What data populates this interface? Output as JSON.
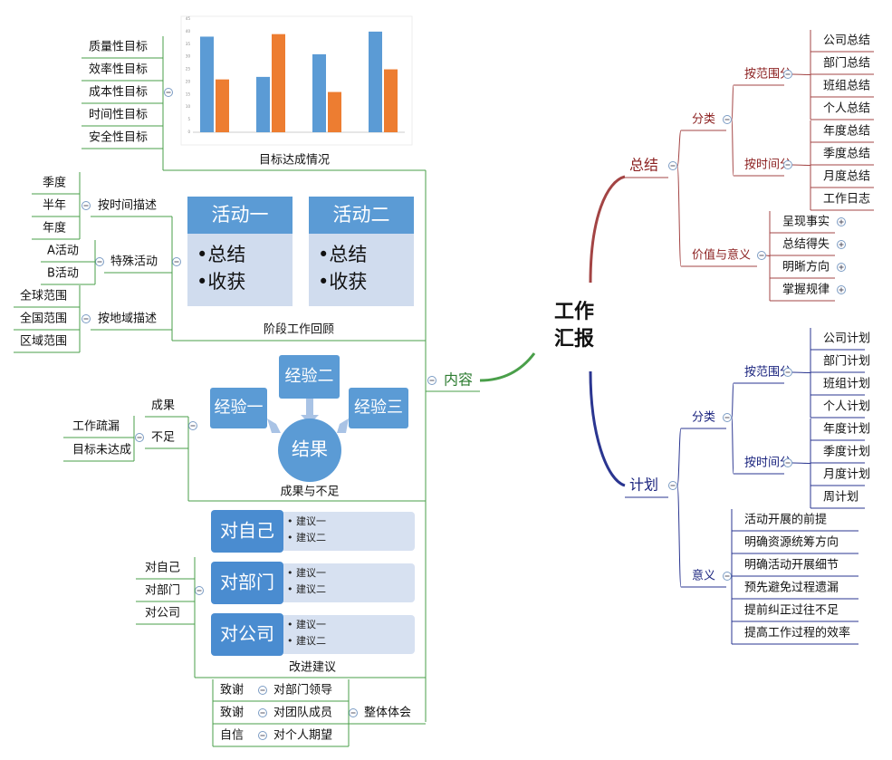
{
  "center": "工作汇报",
  "summary": {
    "label": "总结",
    "classify": {
      "label": "分类",
      "by_scope": {
        "label": "按范围分",
        "items": [
          "公司总结",
          "部门总结",
          "班组总结",
          "个人总结"
        ]
      },
      "by_time": {
        "label": "按时间分",
        "items": [
          "年度总结",
          "季度总结",
          "月度总结",
          "工作日志"
        ]
      }
    },
    "value": {
      "label": "价值与意义",
      "items": [
        "呈现事实",
        "总结得失",
        "明晰方向",
        "掌握规律"
      ]
    }
  },
  "plan": {
    "label": "计划",
    "classify": {
      "label": "分类",
      "by_scope": {
        "label": "按范围分",
        "items": [
          "公司计划",
          "部门计划",
          "班组计划",
          "个人计划"
        ]
      },
      "by_time": {
        "label": "按时间分",
        "items": [
          "年度计划",
          "季度计划",
          "月度计划",
          "周计划"
        ]
      }
    },
    "meaning": {
      "label": "意义",
      "items": [
        "活动开展的前提",
        "明确资源统筹方向",
        "明确活动开展细节",
        "预先避免过程遗漏",
        "提前纠正过往不足",
        "提高工作过程的效率"
      ]
    }
  },
  "content": {
    "label": "内容",
    "goals": {
      "label": "目标达成情况",
      "items": [
        "质量性目标",
        "效率性目标",
        "成本性目标",
        "时间性目标",
        "安全性目标"
      ]
    },
    "review": {
      "label": "阶段工作回顾",
      "by_time": {
        "label": "按时间描述",
        "items": [
          "季度",
          "半年",
          "年度"
        ]
      },
      "special": {
        "label": "特殊活动",
        "items": [
          "A活动",
          "B活动"
        ]
      },
      "by_region": {
        "label": "按地域描述",
        "items": [
          "全球范围",
          "全国范围",
          "区域范围"
        ]
      },
      "activities": [
        {
          "title": "活动一",
          "points": [
            "•总结",
            "•收获"
          ]
        },
        {
          "title": "活动二",
          "points": [
            "•总结",
            "•收获"
          ]
        }
      ]
    },
    "results": {
      "label": "成果与不足",
      "achievements": "成果",
      "shortfalls": {
        "label": "不足",
        "items": [
          "工作疏漏",
          "目标未达成"
        ]
      },
      "diagram": {
        "inputs": [
          "经验一",
          "经验二",
          "经验三"
        ],
        "output": "结果"
      }
    },
    "suggestions": {
      "label": "改进建议",
      "items": [
        "对自己",
        "对部门",
        "对公司"
      ],
      "cards": [
        {
          "title": "对自己",
          "points": [
            "• 建议一",
            "• 建议二"
          ]
        },
        {
          "title": "对部门",
          "points": [
            "• 建议一",
            "• 建议二"
          ]
        },
        {
          "title": "对公司",
          "points": [
            "• 建议一",
            "• 建议二"
          ]
        }
      ]
    },
    "overall": {
      "label": "整体体会",
      "items": [
        {
          "target": "对部门领导",
          "note": "致谢"
        },
        {
          "target": "对团队成员",
          "note": "致谢"
        },
        {
          "target": "对个人期望",
          "note": "自信"
        }
      ]
    }
  },
  "chart_data": {
    "type": "bar",
    "categories": [
      null,
      null,
      null,
      null
    ],
    "series": [
      {
        "color": "#5b9bd5",
        "values": [
          38,
          22,
          31,
          40
        ]
      },
      {
        "color": "#ed7d31",
        "values": [
          21,
          39,
          16,
          25
        ]
      }
    ],
    "ylim": [
      0,
      45
    ],
    "yticks": [
      0,
      5,
      10,
      15,
      20,
      25,
      30,
      35,
      40,
      45
    ]
  }
}
